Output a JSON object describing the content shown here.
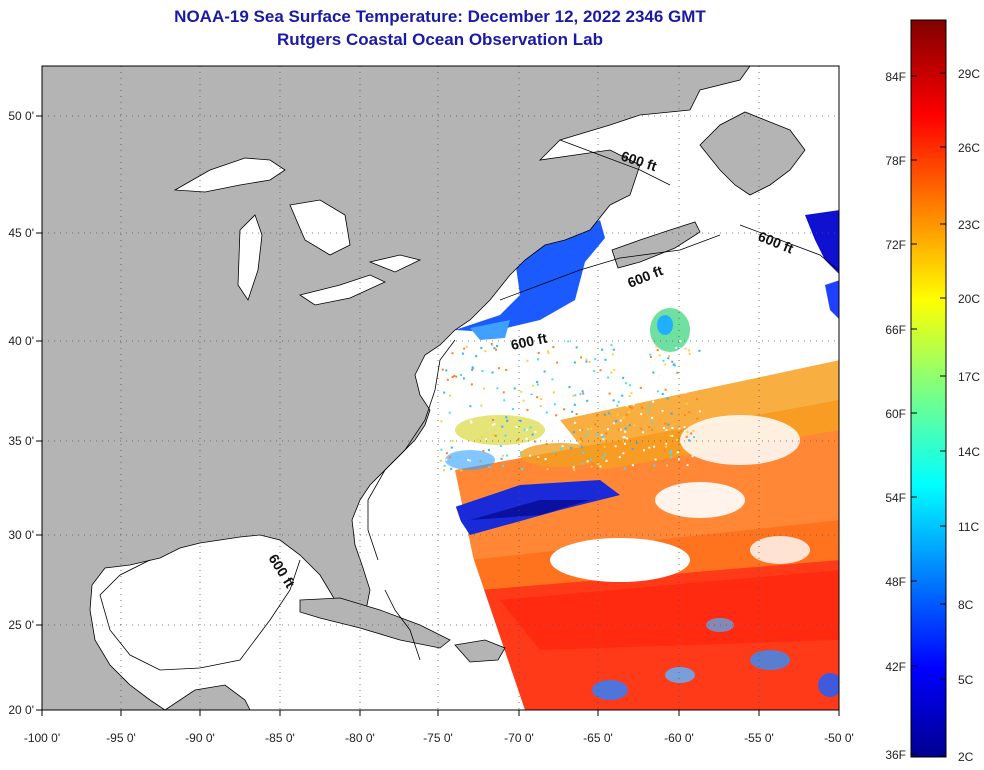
{
  "header": {
    "title": "NOAA-19 Sea Surface Temperature:  December 12, 2022 2346 GMT",
    "subtitle": "Rutgers Coastal Ocean Observation Lab"
  },
  "map": {
    "lon_ticks": [
      "-100 0'",
      "-95 0'",
      "-90 0'",
      "-85 0'",
      "-80 0'",
      "-75 0'",
      "-70 0'",
      "-65 0'",
      "-60 0'",
      "-55 0'",
      "-50 0'"
    ],
    "lat_ticks": [
      "50 0'",
      "45 0'",
      "40 0'",
      "35 0'",
      "30 0'",
      "25 0'",
      "20 0'"
    ],
    "contour_labels": [
      "600 ft",
      "600 ft",
      "600 ft",
      "600 ft",
      "600 ft"
    ],
    "colors": {
      "land": "#b4b4b4",
      "ocean_cloud": "#ffffff",
      "grid": "#555555"
    }
  },
  "colorbar": {
    "fahrenheit_labels": [
      "84F",
      "78F",
      "72F",
      "66F",
      "60F",
      "54F",
      "48F",
      "42F",
      "36F"
    ],
    "celsius_labels": [
      "29C",
      "26C",
      "23C",
      "20C",
      "17C",
      "14C",
      "11C",
      "8C",
      "5C",
      "2C"
    ]
  }
}
